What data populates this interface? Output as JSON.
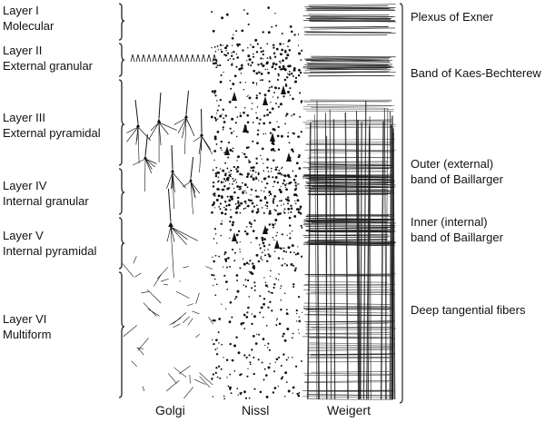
{
  "layers": [
    {
      "name": "Layer I",
      "desc": "Molecular"
    },
    {
      "name": "Layer II",
      "desc": "External granular"
    },
    {
      "name": "Layer III",
      "desc": "External pyramidal"
    },
    {
      "name": "Layer IV",
      "desc": "Internal granular"
    },
    {
      "name": "Layer V",
      "desc": "Internal pyramidal"
    },
    {
      "name": "Layer VI",
      "desc": "Multiform"
    }
  ],
  "fiber_bands": [
    {
      "line1": "Plexus of Exner",
      "line2": ""
    },
    {
      "line1": "Band of Kaes-Bechterew",
      "line2": ""
    },
    {
      "line1": "Outer (external)",
      "line2": "band of Baillarger"
    },
    {
      "line1": "Inner (internal)",
      "line2": "band of Baillarger"
    },
    {
      "line1": "Deep tangential fibers",
      "line2": ""
    }
  ],
  "columns": [
    "Golgi",
    "Nissl",
    "Weigert"
  ]
}
